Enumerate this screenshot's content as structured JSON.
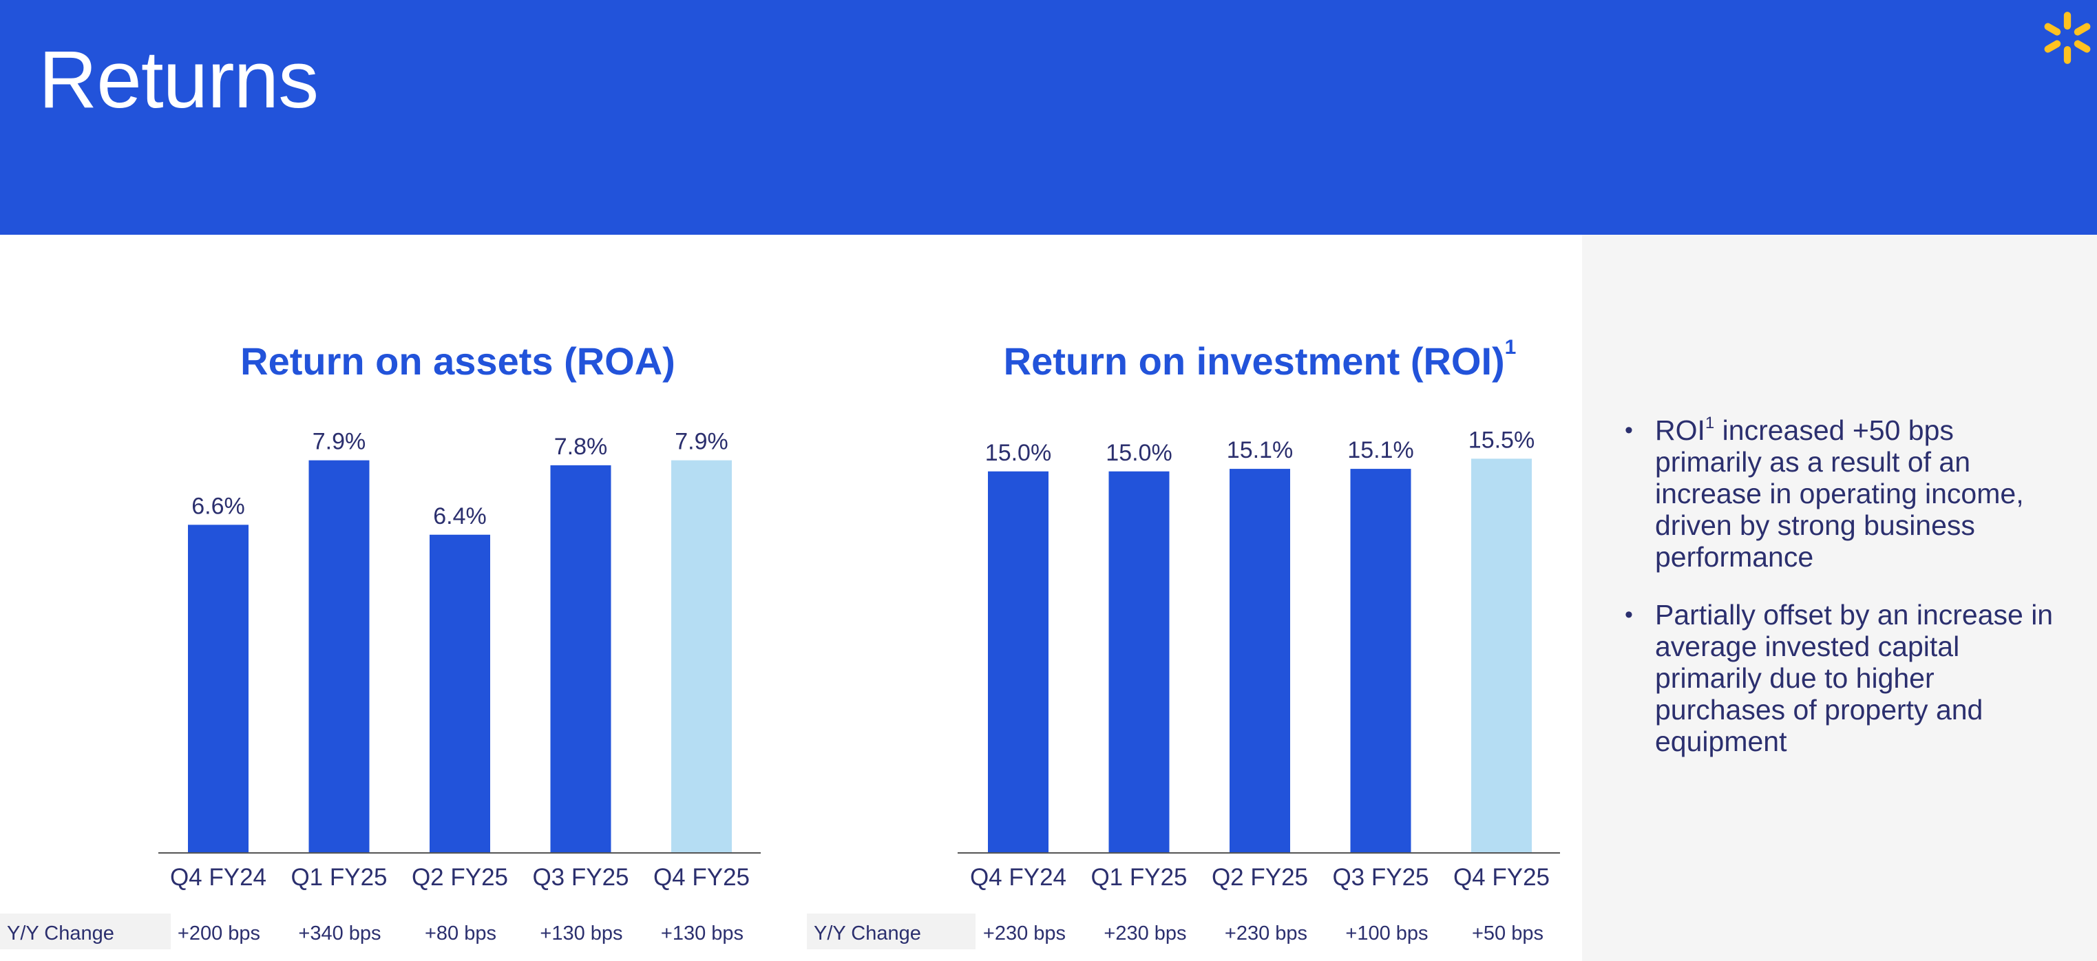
{
  "header": {
    "title": "Returns",
    "logo_icon": "spark-logo-icon",
    "bg_color": "#2253DA",
    "logo_color": "#FFC220"
  },
  "chart_data": [
    {
      "type": "bar",
      "title": "Return on assets (ROA)",
      "title_superscript": "",
      "categories": [
        "Q4 FY24",
        "Q1 FY25",
        "Q2 FY25",
        "Q3 FY25",
        "Q4 FY25"
      ],
      "values": [
        6.6,
        7.9,
        6.4,
        7.8,
        7.9
      ],
      "value_labels": [
        "6.6%",
        "7.9%",
        "6.4%",
        "7.8%",
        "7.9%"
      ],
      "ylim": [
        0,
        8.7
      ],
      "yoy_label": "Y/Y Change",
      "yoy_changes": [
        "+200 bps",
        "+340 bps",
        "+80 bps",
        "+130 bps",
        "+130 bps"
      ],
      "bar_color": "#2253DA",
      "highlight_color": "#B5DDF3",
      "highlight_index": 4
    },
    {
      "type": "bar",
      "title": "Return on investment (ROI)",
      "title_superscript": "1",
      "categories": [
        "Q4 FY24",
        "Q1 FY25",
        "Q2 FY25",
        "Q3 FY25",
        "Q4 FY25"
      ],
      "values": [
        15.0,
        15.0,
        15.1,
        15.1,
        15.5
      ],
      "value_labels": [
        "15.0%",
        "15.0%",
        "15.1%",
        "15.1%",
        "15.5%"
      ],
      "ylim": [
        0,
        17
      ],
      "yoy_label": "Y/Y Change",
      "yoy_changes": [
        "+230 bps",
        "+230 bps",
        "+230 bps",
        "+100 bps",
        "+50 bps"
      ],
      "bar_color": "#2253DA",
      "highlight_color": "#B5DDF3",
      "highlight_index": 4
    }
  ],
  "commentary": {
    "bullet1": {
      "prefix": "ROI",
      "superscript": "1",
      "text": " increased +50 bps primarily as a result of an increase in operating income, driven by strong business performance"
    },
    "bullet2": {
      "text": "Partially offset by an increase in average invested capital primarily due to higher purchases of property and equipment"
    }
  }
}
